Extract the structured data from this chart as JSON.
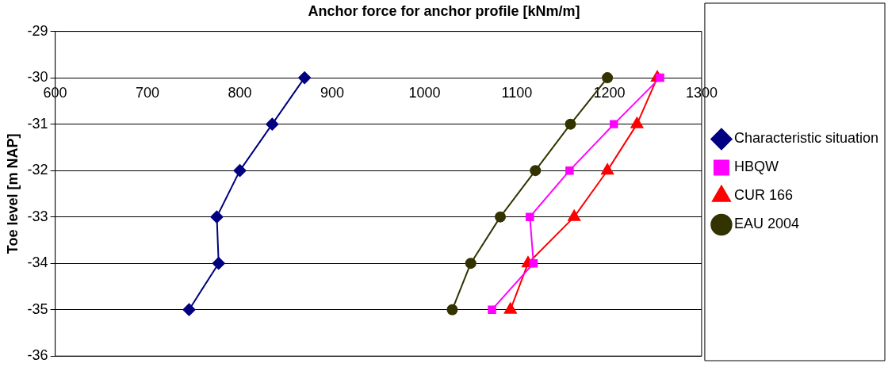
{
  "chart_data": {
    "type": "line",
    "title": "Anchor force for anchor profile [kNm/m]",
    "ylabel": "Toe level [m NAP]",
    "series": [
      {
        "name": "Characteristic situation",
        "color": "#000080",
        "marker": "diamond",
        "x": [
          870,
          835,
          800,
          775,
          777,
          745
        ],
        "values": [
          -30,
          -31,
          -32,
          -33,
          -34,
          -35
        ]
      },
      {
        "name": "HBQW",
        "color": "#ff00ff",
        "marker": "square",
        "x": [
          1255,
          1205,
          1157,
          1114,
          1118,
          1073
        ],
        "values": [
          -30,
          -31,
          -32,
          -33,
          -34,
          -35
        ]
      },
      {
        "name": "CUR 166",
        "color": "#ff0000",
        "marker": "triangle",
        "x": [
          1252,
          1230,
          1198,
          1162,
          1112,
          1093
        ],
        "values": [
          -30,
          -31,
          -32,
          -33,
          -34,
          -35
        ]
      },
      {
        "name": "EAU 2004",
        "color": "#333300",
        "marker": "circle",
        "x": [
          1198,
          1158,
          1120,
          1082,
          1050,
          1030
        ],
        "values": [
          -30,
          -31,
          -32,
          -33,
          -34,
          -35
        ]
      }
    ],
    "xlim": [
      600,
      1300
    ],
    "xticks": [
      600,
      700,
      800,
      900,
      1000,
      1100,
      1200,
      1300
    ],
    "ylim": [
      -36,
      -29
    ],
    "yticks": [
      -36,
      -35,
      -34,
      -33,
      -32,
      -31,
      -30,
      -29
    ],
    "grid": "y",
    "legend": "right"
  }
}
